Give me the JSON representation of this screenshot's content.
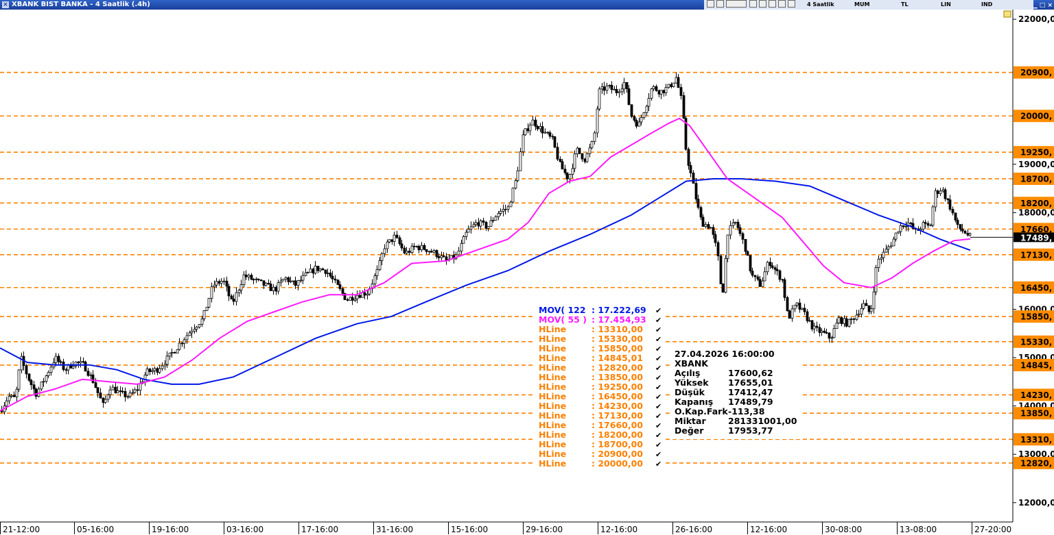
{
  "window": {
    "title": "XBANK BIST BANKA - 4 Saatlik (.4h)",
    "toolbar": {
      "period": "4 Saatlik",
      "style": "MUM",
      "currency": "TL",
      "scale": "LIN",
      "indicators": "IND"
    }
  },
  "colors": {
    "candle": "#000000",
    "ma122": "#0018e6",
    "ma55": "#ff1aff",
    "hline": "#ff8000",
    "label_bg": "#ff8c00"
  },
  "chart_data": {
    "type": "candlestick",
    "symbol": "XBANK",
    "timeframe": "4h",
    "x_ticks": [
      "21-12:00",
      "05-16:00",
      "19-16:00",
      "03-16:00",
      "17-16:00",
      "31-16:00",
      "15-16:00",
      "29-16:00",
      "12-16:00",
      "26-16:00",
      "12-16:00",
      "30-08:00",
      "13-08:00",
      "27-20:00"
    ],
    "y_ticks": [
      "22000,0",
      "19000,0",
      "18000,0",
      "16000,0",
      "15000,0",
      "14000,0",
      "13000,0",
      "12000,0"
    ],
    "y_axis": {
      "min": 11600,
      "max": 22200,
      "scale": "linear"
    },
    "last_price_label": "17489,",
    "hlines": [
      "20900,",
      "20000,",
      "19250,",
      "18700,",
      "18200,",
      "17660,",
      "17130,",
      "16450,",
      "15850,",
      "15330,",
      "14845,",
      "14230,",
      "13850,",
      "13310,",
      "12820,"
    ],
    "hline_values": [
      20900,
      20000,
      19250,
      18700,
      18200,
      17660,
      17130,
      16450,
      15850,
      15330,
      14845,
      14230,
      13850,
      13310,
      12820
    ],
    "indicator_legend": [
      {
        "name": "MOV( 122",
        "value": ": 17.222,69",
        "color": "#0018e6"
      },
      {
        "name": "MOV( 55 )",
        "value": ": 17.454,93",
        "color": "#ff1aff"
      },
      {
        "name": "HLine",
        "value": ": 13310,00",
        "color": "#ff8000"
      },
      {
        "name": "HLine",
        "value": ": 15330,00",
        "color": "#ff8000"
      },
      {
        "name": "HLine",
        "value": ": 15850,00",
        "color": "#ff8000"
      },
      {
        "name": "HLine",
        "value": ": 14845,01",
        "color": "#ff8000"
      },
      {
        "name": "HLine",
        "value": ": 12820,00",
        "color": "#ff8000"
      },
      {
        "name": "HLine",
        "value": ": 13850,00",
        "color": "#ff8000"
      },
      {
        "name": "HLine",
        "value": ": 19250,00",
        "color": "#ff8000"
      },
      {
        "name": "HLine",
        "value": ": 16450,00",
        "color": "#ff8000"
      },
      {
        "name": "HLine",
        "value": ": 14230,00",
        "color": "#ff8000"
      },
      {
        "name": "HLine",
        "value": ": 17130,00",
        "color": "#ff8000"
      },
      {
        "name": "HLine",
        "value": ": 17660,00",
        "color": "#ff8000"
      },
      {
        "name": "HLine",
        "value": ": 18200,00",
        "color": "#ff8000"
      },
      {
        "name": "HLine",
        "value": ": 18700,00",
        "color": "#ff8000"
      },
      {
        "name": "HLine",
        "value": ": 20900,00",
        "color": "#ff8000"
      },
      {
        "name": "HLine",
        "value": ": 20000,00",
        "color": "#ff8000"
      }
    ],
    "info_box": {
      "datetime": "27.04.2026  16:00:00",
      "symbol": "XBANK",
      "rows": [
        {
          "label": "Açılış",
          "value": "17600,62"
        },
        {
          "label": "Yüksek",
          "value": "17655,01"
        },
        {
          "label": "Düşük",
          "value": "17412,47"
        },
        {
          "label": "Kapanış",
          "value": "17489,79"
        },
        {
          "label": "O.Kap.Fark",
          "value": "-113,38"
        },
        {
          "label": "Miktar",
          "value": "281331001,00"
        },
        {
          "label": "Değer",
          "value": "17953,77"
        }
      ]
    },
    "close_path": [
      [
        0,
        13900
      ],
      [
        12,
        14200
      ],
      [
        22,
        14150
      ],
      [
        30,
        15000
      ],
      [
        40,
        14600
      ],
      [
        52,
        14250
      ],
      [
        66,
        14600
      ],
      [
        80,
        15000
      ],
      [
        94,
        14750
      ],
      [
        108,
        14900
      ],
      [
        122,
        14850
      ],
      [
        136,
        14500
      ],
      [
        150,
        14000
      ],
      [
        160,
        14400
      ],
      [
        175,
        14250
      ],
      [
        188,
        14200
      ],
      [
        200,
        14350
      ],
      [
        213,
        14700
      ],
      [
        228,
        14750
      ],
      [
        245,
        15000
      ],
      [
        262,
        15300
      ],
      [
        280,
        15600
      ],
      [
        295,
        15800
      ],
      [
        310,
        16500
      ],
      [
        325,
        16600
      ],
      [
        338,
        16100
      ],
      [
        355,
        16700
      ],
      [
        370,
        16600
      ],
      [
        385,
        16500
      ],
      [
        400,
        16400
      ],
      [
        415,
        16650
      ],
      [
        430,
        16500
      ],
      [
        445,
        16700
      ],
      [
        460,
        16850
      ],
      [
        475,
        16800
      ],
      [
        490,
        16500
      ],
      [
        505,
        16200
      ],
      [
        520,
        16300
      ],
      [
        535,
        16350
      ],
      [
        550,
        16800
      ],
      [
        560,
        17300
      ],
      [
        575,
        17500
      ],
      [
        590,
        17150
      ],
      [
        605,
        17300
      ],
      [
        620,
        17250
      ],
      [
        635,
        17150
      ],
      [
        650,
        17000
      ],
      [
        665,
        17100
      ],
      [
        680,
        17600
      ],
      [
        695,
        17800
      ],
      [
        710,
        17700
      ],
      [
        725,
        18000
      ],
      [
        740,
        18100
      ],
      [
        752,
        18700
      ],
      [
        762,
        19600
      ],
      [
        775,
        19900
      ],
      [
        790,
        19700
      ],
      [
        805,
        19500
      ],
      [
        815,
        19000
      ],
      [
        828,
        18700
      ],
      [
        840,
        19300
      ],
      [
        852,
        19100
      ],
      [
        865,
        19500
      ],
      [
        872,
        20500
      ],
      [
        885,
        20600
      ],
      [
        898,
        20500
      ],
      [
        910,
        20700
      ],
      [
        920,
        20000
      ],
      [
        930,
        19800
      ],
      [
        940,
        20200
      ],
      [
        950,
        20600
      ],
      [
        962,
        20500
      ],
      [
        975,
        20600
      ],
      [
        985,
        20800
      ],
      [
        993,
        20300
      ],
      [
        1000,
        19200
      ],
      [
        1008,
        18700
      ],
      [
        1015,
        18200
      ],
      [
        1022,
        17800
      ],
      [
        1035,
        17700
      ],
      [
        1045,
        17200
      ],
      [
        1052,
        16200
      ],
      [
        1060,
        17600
      ],
      [
        1072,
        17800
      ],
      [
        1085,
        17300
      ],
      [
        1095,
        16700
      ],
      [
        1108,
        16500
      ],
      [
        1120,
        17000
      ],
      [
        1130,
        16800
      ],
      [
        1140,
        16600
      ],
      [
        1148,
        15800
      ],
      [
        1160,
        16100
      ],
      [
        1172,
        15900
      ],
      [
        1185,
        15600
      ],
      [
        1200,
        15500
      ],
      [
        1210,
        15400
      ],
      [
        1222,
        15800
      ],
      [
        1235,
        15700
      ],
      [
        1248,
        15900
      ],
      [
        1258,
        16100
      ],
      [
        1268,
        15900
      ],
      [
        1278,
        17000
      ],
      [
        1290,
        17200
      ],
      [
        1300,
        17400
      ],
      [
        1310,
        17700
      ],
      [
        1322,
        17800
      ],
      [
        1335,
        17600
      ],
      [
        1345,
        17750
      ],
      [
        1355,
        17700
      ],
      [
        1362,
        18400
      ],
      [
        1372,
        18500
      ],
      [
        1385,
        18100
      ],
      [
        1395,
        17700
      ],
      [
        1405,
        17600
      ],
      [
        1414,
        17490
      ]
    ],
    "ma55_path": [
      [
        0,
        13900
      ],
      [
        40,
        14200
      ],
      [
        80,
        14350
      ],
      [
        120,
        14550
      ],
      [
        160,
        14500
      ],
      [
        200,
        14450
      ],
      [
        240,
        14600
      ],
      [
        280,
        14950
      ],
      [
        320,
        15400
      ],
      [
        360,
        15750
      ],
      [
        400,
        15950
      ],
      [
        440,
        16150
      ],
      [
        480,
        16300
      ],
      [
        520,
        16300
      ],
      [
        560,
        16550
      ],
      [
        600,
        16950
      ],
      [
        650,
        17000
      ],
      [
        700,
        17250
      ],
      [
        740,
        17450
      ],
      [
        770,
        17800
      ],
      [
        800,
        18400
      ],
      [
        830,
        18650
      ],
      [
        860,
        18750
      ],
      [
        890,
        19150
      ],
      [
        920,
        19400
      ],
      [
        950,
        19650
      ],
      [
        975,
        19850
      ],
      [
        990,
        19950
      ],
      [
        1005,
        19800
      ],
      [
        1030,
        19300
      ],
      [
        1060,
        18700
      ],
      [
        1100,
        18300
      ],
      [
        1140,
        17900
      ],
      [
        1170,
        17400
      ],
      [
        1200,
        16900
      ],
      [
        1230,
        16550
      ],
      [
        1270,
        16450
      ],
      [
        1300,
        16650
      ],
      [
        1330,
        16950
      ],
      [
        1360,
        17200
      ],
      [
        1390,
        17420
      ],
      [
        1414,
        17455
      ]
    ],
    "ma122_path": [
      [
        0,
        15200
      ],
      [
        40,
        14900
      ],
      [
        80,
        14850
      ],
      [
        130,
        14850
      ],
      [
        170,
        14750
      ],
      [
        210,
        14550
      ],
      [
        250,
        14450
      ],
      [
        290,
        14450
      ],
      [
        340,
        14600
      ],
      [
        400,
        15000
      ],
      [
        460,
        15400
      ],
      [
        520,
        15700
      ],
      [
        570,
        15850
      ],
      [
        620,
        16150
      ],
      [
        680,
        16500
      ],
      [
        740,
        16800
      ],
      [
        800,
        17200
      ],
      [
        860,
        17550
      ],
      [
        920,
        17950
      ],
      [
        960,
        18300
      ],
      [
        1000,
        18650
      ],
      [
        1040,
        18700
      ],
      [
        1080,
        18700
      ],
      [
        1130,
        18650
      ],
      [
        1180,
        18550
      ],
      [
        1230,
        18250
      ],
      [
        1280,
        17950
      ],
      [
        1330,
        17700
      ],
      [
        1370,
        17450
      ],
      [
        1414,
        17222
      ]
    ]
  }
}
